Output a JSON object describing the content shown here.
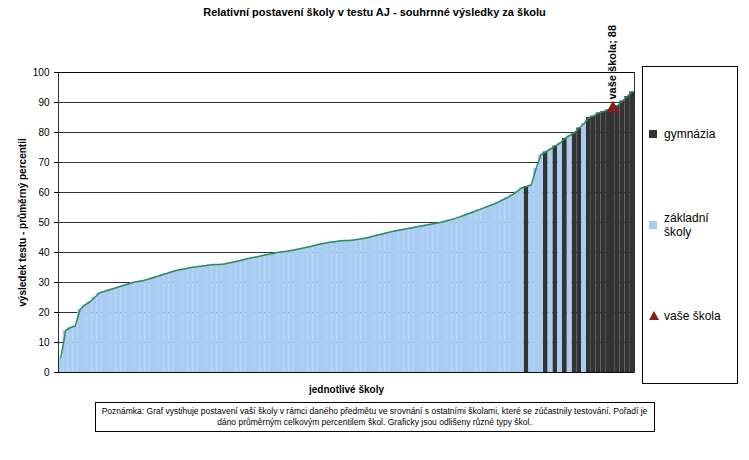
{
  "chart_data": {
    "type": "bar",
    "title": "Relativní postavení školy v testu AJ - souhrnné výsledky za školu",
    "x_label": "jednotlivé školy",
    "y_label": "výsledek testu - průměrný percentil",
    "note": "Poznámka: Graf vystihuje postavení vaší školy v rámci daného předmětu ve srovnání s ostatními školami, které se zúčastnily testování. Pořadí je dáno průměrným celkovým percentilem škol. Graficky jsou odlišeny různé typy škol.",
    "categories": [
      null,
      null,
      null,
      null,
      null,
      null,
      null,
      null,
      null,
      null,
      null,
      null,
      null,
      null,
      null,
      null,
      null,
      null,
      null,
      null,
      null,
      null,
      null,
      null,
      null,
      null,
      null,
      null,
      null,
      null,
      null,
      null,
      null,
      null,
      null,
      null,
      null,
      null,
      null,
      null,
      null,
      null,
      null,
      null,
      null,
      null,
      null,
      null,
      null,
      null,
      null,
      null,
      null,
      null,
      null,
      null,
      null,
      null,
      null,
      null,
      null,
      null,
      null,
      null,
      null,
      null,
      null,
      null,
      null,
      null,
      null,
      null,
      null,
      null,
      null,
      null,
      null,
      null,
      null,
      null,
      null,
      null,
      null,
      null,
      null,
      null,
      null,
      null,
      null,
      null,
      null,
      null,
      null,
      null,
      null,
      null,
      null,
      null,
      null,
      null,
      null,
      null,
      null,
      null,
      null,
      null,
      null,
      null,
      null,
      null,
      null,
      null,
      null,
      null,
      null,
      null,
      null,
      null,
      null,
      null
    ],
    "series": [
      {
        "name": "gymnázia",
        "type": "bar",
        "color": "#333333",
        "values": [
          null,
          null,
          null,
          null,
          null,
          null,
          null,
          null,
          null,
          null,
          null,
          null,
          null,
          null,
          null,
          null,
          null,
          null,
          null,
          null,
          null,
          null,
          null,
          null,
          null,
          null,
          null,
          null,
          null,
          null,
          null,
          null,
          null,
          null,
          null,
          null,
          null,
          null,
          null,
          null,
          null,
          null,
          null,
          null,
          null,
          null,
          null,
          null,
          null,
          null,
          null,
          null,
          null,
          null,
          null,
          null,
          null,
          null,
          null,
          null,
          null,
          null,
          null,
          null,
          null,
          null,
          null,
          null,
          null,
          null,
          null,
          null,
          null,
          null,
          null,
          null,
          null,
          null,
          null,
          null,
          null,
          null,
          null,
          null,
          null,
          null,
          null,
          null,
          null,
          null,
          null,
          null,
          null,
          null,
          null,
          null,
          null,
          62,
          null,
          null,
          null,
          73.5,
          null,
          75.5,
          null,
          78,
          null,
          80,
          81.5,
          null,
          85,
          85.5,
          86.5,
          87,
          87.5,
          88,
          89,
          90.5,
          92,
          93.5
        ]
      },
      {
        "name": "základní školy",
        "type": "bar",
        "color": "#a9ccf2",
        "values": [
          5,
          14,
          15,
          15.5,
          21,
          22.5,
          23.5,
          25,
          26.5,
          27,
          27.5,
          28,
          28.5,
          29,
          29.5,
          30,
          30.3,
          30.6,
          31,
          31.5,
          32,
          32.5,
          33,
          33.5,
          34,
          34.3,
          34.6,
          35,
          35.2,
          35.4,
          35.6,
          35.8,
          36,
          36,
          36.2,
          36.5,
          36.8,
          37.2,
          37.6,
          38,
          38.3,
          38.6,
          39,
          39.3,
          39.6,
          40,
          40.2,
          40.4,
          40.7,
          41,
          41.3,
          41.7,
          42,
          42.4,
          42.8,
          43.1,
          43.4,
          43.6,
          43.8,
          44,
          44,
          44.2,
          44.4,
          44.7,
          45,
          45.4,
          45.8,
          46.2,
          46.6,
          47,
          47.3,
          47.6,
          47.9,
          48.2,
          48.5,
          48.8,
          49.1,
          49.4,
          49.7,
          50,
          50.4,
          50.8,
          51.3,
          51.8,
          52.4,
          53,
          53.6,
          54.2,
          54.8,
          55.4,
          56,
          56.7,
          57.5,
          58.3,
          59.2,
          60.3,
          61.5,
          null,
          62.5,
          68,
          72.5,
          null,
          74.5,
          null,
          76.5,
          null,
          79,
          null,
          null,
          83,
          null,
          null,
          null,
          null,
          null,
          null,
          null,
          null,
          null,
          null
        ]
      },
      {
        "name": "vaše škola",
        "type": "scatter",
        "marker": "triangle",
        "color": "#8b1a1a",
        "values": [
          null,
          null,
          null,
          null,
          null,
          null,
          null,
          null,
          null,
          null,
          null,
          null,
          null,
          null,
          null,
          null,
          null,
          null,
          null,
          null,
          null,
          null,
          null,
          null,
          null,
          null,
          null,
          null,
          null,
          null,
          null,
          null,
          null,
          null,
          null,
          null,
          null,
          null,
          null,
          null,
          null,
          null,
          null,
          null,
          null,
          null,
          null,
          null,
          null,
          null,
          null,
          null,
          null,
          null,
          null,
          null,
          null,
          null,
          null,
          null,
          null,
          null,
          null,
          null,
          null,
          null,
          null,
          null,
          null,
          null,
          null,
          null,
          null,
          null,
          null,
          null,
          null,
          null,
          null,
          null,
          null,
          null,
          null,
          null,
          null,
          null,
          null,
          null,
          null,
          null,
          null,
          null,
          null,
          null,
          null,
          null,
          null,
          null,
          null,
          null,
          null,
          null,
          null,
          null,
          null,
          null,
          null,
          null,
          null,
          null,
          null,
          null,
          null,
          null,
          null,
          88,
          null,
          null,
          null,
          null
        ]
      }
    ],
    "annotations": [
      {
        "text": "vaše škola; 88",
        "index": 115,
        "value": 88
      }
    ],
    "color": "#2e8b57",
    "ylim": [
      0,
      100
    ],
    "yticks": [
      0,
      10,
      20,
      30,
      40,
      50,
      60,
      70,
      80,
      90,
      100
    ],
    "grid": true,
    "legend": "right",
    "tick_labels": "y"
  }
}
